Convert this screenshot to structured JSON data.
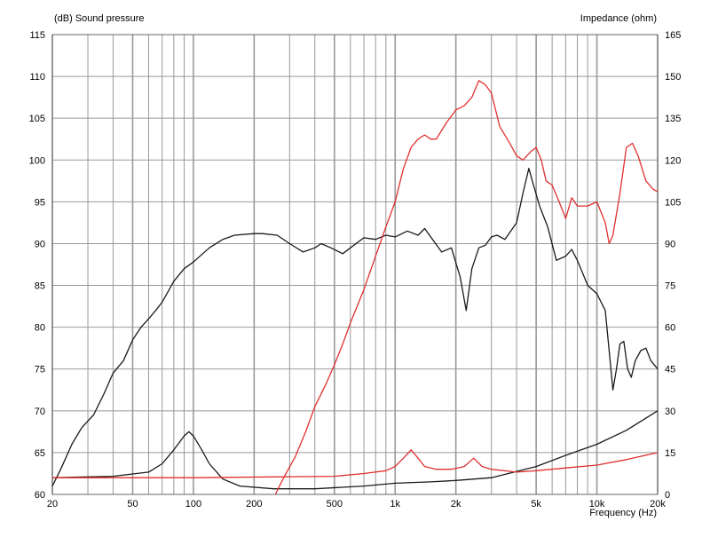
{
  "chart_data": {
    "type": "line",
    "left_axis_title": "(dB)  Sound pressure",
    "right_axis_title": "Impedance  (ohm)",
    "xlabel": "Frequency  (Hz)",
    "x_scale": "log",
    "xlim": [
      20,
      20000
    ],
    "ylim_left": [
      60,
      115
    ],
    "ylim_right": [
      0,
      165
    ],
    "grid": true,
    "x_ticks": [
      {
        "v": 20,
        "label": "20"
      },
      {
        "v": 50,
        "label": "50"
      },
      {
        "v": 100,
        "label": "100"
      },
      {
        "v": 200,
        "label": "200"
      },
      {
        "v": 500,
        "label": "500"
      },
      {
        "v": 1000,
        "label": "1k"
      },
      {
        "v": 2000,
        "label": "2k"
      },
      {
        "v": 5000,
        "label": "5k"
      },
      {
        "v": 10000,
        "label": "10k"
      },
      {
        "v": 20000,
        "label": "20k"
      }
    ],
    "y_ticks_left": [
      "60",
      "65",
      "70",
      "75",
      "80",
      "85",
      "90",
      "95",
      "100",
      "105",
      "110",
      "115"
    ],
    "y_ticks_right": [
      "0",
      "15",
      "30",
      "45",
      "60",
      "75",
      "90",
      "105",
      "120",
      "135",
      "150",
      "165"
    ],
    "colors": {
      "black": "#1a1a1a",
      "red": "#e03030",
      "grid": "#999999"
    },
    "series": [
      {
        "color": "#1a1a1a",
        "axis": "left",
        "points": [
          [
            20,
            61
          ],
          [
            22,
            63
          ],
          [
            25,
            66
          ],
          [
            28,
            68
          ],
          [
            32,
            69.5
          ],
          [
            36,
            72
          ],
          [
            40,
            74.5
          ],
          [
            45,
            76
          ],
          [
            50,
            78.5
          ],
          [
            55,
            80
          ],
          [
            60,
            81
          ],
          [
            65,
            82
          ],
          [
            70,
            83
          ],
          [
            80,
            85.5
          ],
          [
            90,
            87
          ],
          [
            100,
            87.8
          ],
          [
            120,
            89.5
          ],
          [
            140,
            90.5
          ],
          [
            160,
            91
          ],
          [
            200,
            91.2
          ],
          [
            220,
            91.2
          ],
          [
            260,
            91
          ],
          [
            300,
            90
          ],
          [
            350,
            89
          ],
          [
            400,
            89.5
          ],
          [
            430,
            90
          ],
          [
            480,
            89.5
          ],
          [
            550,
            88.8
          ],
          [
            600,
            89.5
          ],
          [
            700,
            90.7
          ],
          [
            800,
            90.5
          ],
          [
            900,
            91
          ],
          [
            1000,
            90.8
          ],
          [
            1150,
            91.5
          ],
          [
            1300,
            91
          ],
          [
            1400,
            91.8
          ],
          [
            1500,
            90.8
          ],
          [
            1700,
            89
          ],
          [
            1900,
            89.5
          ],
          [
            2100,
            86
          ],
          [
            2250,
            82
          ],
          [
            2400,
            87
          ],
          [
            2600,
            89.5
          ],
          [
            2800,
            89.8
          ],
          [
            3000,
            90.8
          ],
          [
            3200,
            91
          ],
          [
            3500,
            90.5
          ],
          [
            4000,
            92.5
          ],
          [
            4300,
            96
          ],
          [
            4600,
            99
          ],
          [
            4850,
            97
          ],
          [
            5200,
            94.5
          ],
          [
            5700,
            92
          ],
          [
            6300,
            88
          ],
          [
            7000,
            88.5
          ],
          [
            7500,
            89.3
          ],
          [
            8000,
            88
          ],
          [
            9000,
            85
          ],
          [
            10000,
            84
          ],
          [
            11000,
            82
          ],
          [
            12000,
            72.5
          ],
          [
            12500,
            75
          ],
          [
            13000,
            78
          ],
          [
            13600,
            78.3
          ],
          [
            14200,
            75
          ],
          [
            14800,
            74
          ],
          [
            15500,
            76
          ],
          [
            16500,
            77.2
          ],
          [
            17500,
            77.5
          ],
          [
            18500,
            76
          ],
          [
            20000,
            75
          ]
        ]
      },
      {
        "color": "#1a1a1a",
        "axis": "right",
        "points": [
          [
            20,
            6
          ],
          [
            40,
            6.5
          ],
          [
            60,
            8
          ],
          [
            70,
            11
          ],
          [
            80,
            16
          ],
          [
            90,
            21
          ],
          [
            95,
            22.5
          ],
          [
            100,
            21
          ],
          [
            110,
            16
          ],
          [
            120,
            11
          ],
          [
            140,
            5.5
          ],
          [
            170,
            3
          ],
          [
            250,
            2
          ],
          [
            400,
            2
          ],
          [
            700,
            3
          ],
          [
            1000,
            4
          ],
          [
            1500,
            4.5
          ],
          [
            2000,
            5
          ],
          [
            3000,
            6
          ],
          [
            5000,
            10
          ],
          [
            7000,
            14
          ],
          [
            10000,
            18
          ],
          [
            14000,
            23
          ],
          [
            20000,
            30
          ]
        ]
      },
      {
        "color": "#e03030",
        "axis": "left",
        "points": [
          [
            255,
            60
          ],
          [
            280,
            62
          ],
          [
            320,
            64.5
          ],
          [
            360,
            67.5
          ],
          [
            400,
            70.5
          ],
          [
            450,
            73
          ],
          [
            500,
            75.5
          ],
          [
            550,
            78
          ],
          [
            600,
            80.5
          ],
          [
            700,
            84.5
          ],
          [
            800,
            88.5
          ],
          [
            900,
            92
          ],
          [
            1000,
            95
          ],
          [
            1100,
            99
          ],
          [
            1200,
            101.5
          ],
          [
            1300,
            102.5
          ],
          [
            1400,
            103
          ],
          [
            1500,
            102.5
          ],
          [
            1600,
            102.5
          ],
          [
            1800,
            104.5
          ],
          [
            2000,
            106
          ],
          [
            2200,
            106.5
          ],
          [
            2400,
            107.5
          ],
          [
            2600,
            109.5
          ],
          [
            2800,
            109
          ],
          [
            3000,
            108
          ],
          [
            3300,
            104
          ],
          [
            3700,
            102
          ],
          [
            4000,
            100.5
          ],
          [
            4300,
            100
          ],
          [
            4700,
            101
          ],
          [
            5000,
            101.5
          ],
          [
            5300,
            100
          ],
          [
            5600,
            97.5
          ],
          [
            6000,
            97
          ],
          [
            6500,
            95
          ],
          [
            7000,
            93
          ],
          [
            7500,
            95.5
          ],
          [
            8000,
            94.5
          ],
          [
            9000,
            94.5
          ],
          [
            10000,
            95
          ],
          [
            11000,
            92.5
          ],
          [
            11500,
            90
          ],
          [
            12000,
            91
          ],
          [
            13000,
            96
          ],
          [
            14000,
            101.5
          ],
          [
            15000,
            102
          ],
          [
            16000,
            100.5
          ],
          [
            17500,
            97.5
          ],
          [
            19000,
            96.5
          ],
          [
            20000,
            96.2
          ]
        ]
      },
      {
        "color": "#e03030",
        "axis": "right",
        "points": [
          [
            20,
            6
          ],
          [
            100,
            6
          ],
          [
            500,
            6.5
          ],
          [
            700,
            7.5
          ],
          [
            900,
            8.5
          ],
          [
            1000,
            10
          ],
          [
            1100,
            13
          ],
          [
            1200,
            16
          ],
          [
            1300,
            13
          ],
          [
            1400,
            10
          ],
          [
            1600,
            9
          ],
          [
            1900,
            9
          ],
          [
            2200,
            10
          ],
          [
            2450,
            13
          ],
          [
            2700,
            10
          ],
          [
            3000,
            9
          ],
          [
            4000,
            8
          ],
          [
            5000,
            8.5
          ],
          [
            7000,
            9.5
          ],
          [
            10000,
            10.5
          ],
          [
            14000,
            12.5
          ],
          [
            20000,
            15
          ]
        ]
      }
    ]
  }
}
